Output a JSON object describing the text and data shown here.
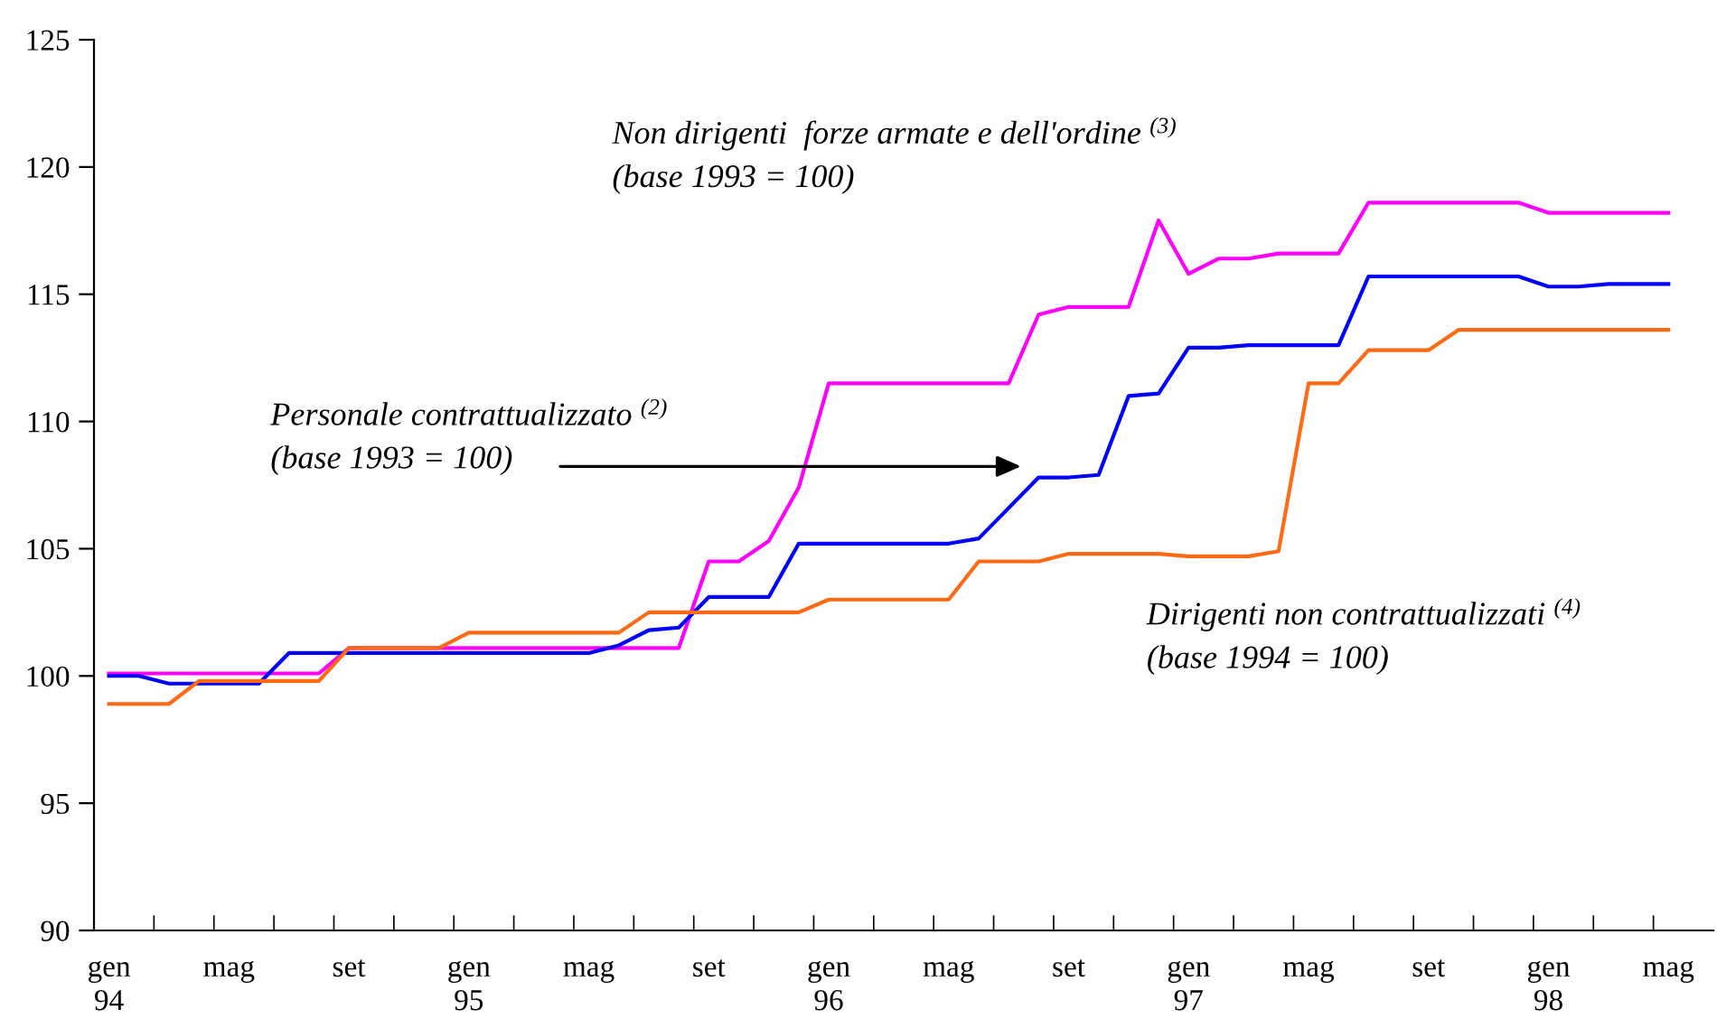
{
  "chart_data": {
    "type": "line",
    "categories": [
      "gen\n94",
      null,
      null,
      null,
      "mag",
      null,
      null,
      null,
      "set",
      null,
      null,
      null,
      "gen\n95",
      null,
      null,
      null,
      "mag",
      null,
      null,
      null,
      "set",
      null,
      null,
      null,
      "gen\n96",
      null,
      null,
      null,
      "mag",
      null,
      null,
      null,
      "set",
      null,
      null,
      null,
      "gen\n97",
      null,
      null,
      null,
      "mag",
      null,
      null,
      null,
      "set",
      null,
      null,
      null,
      "gen\n98",
      null,
      null,
      null,
      "mag"
    ],
    "series": [
      {
        "name": "Non dirigenti  forze armate e dell'ordine $^{(3)}$\n(base 1993 = 100)",
        "color": "#ff00ff",
        "values": [
          100.1,
          100.1,
          100.1,
          100.1,
          100.1,
          100.1,
          100.1,
          100.1,
          101.1,
          101.1,
          101.1,
          101.1,
          101.1,
          101.1,
          101.1,
          101.1,
          101.1,
          101.1,
          101.1,
          101.1,
          104.5,
          104.5,
          105.3,
          107.4,
          111.5,
          111.5,
          111.5,
          111.5,
          111.5,
          111.5,
          111.5,
          114.2,
          114.5,
          114.5,
          114.5,
          117.9,
          115.8,
          116.4,
          116.4,
          116.6,
          116.6,
          116.6,
          118.6,
          118.6,
          118.6,
          118.6,
          118.6,
          118.6,
          118.2,
          118.2,
          118.2,
          118.2,
          118.2
        ]
      },
      {
        "name": "Personale contrattualizzato $^{(2)}$\n(base 1993 = 100)",
        "color": "#0000ff",
        "values": [
          100.0,
          100.0,
          99.7,
          99.7,
          99.7,
          99.7,
          100.9,
          100.9,
          100.9,
          100.9,
          100.9,
          100.9,
          100.9,
          100.9,
          100.9,
          100.9,
          100.9,
          101.2,
          101.8,
          101.9,
          103.1,
          103.1,
          103.1,
          105.2,
          105.2,
          105.2,
          105.2,
          105.2,
          105.2,
          105.4,
          106.6,
          107.8,
          107.8,
          107.9,
          111.0,
          111.1,
          112.9,
          112.9,
          113.0,
          113.0,
          113.0,
          113.0,
          115.7,
          115.7,
          115.7,
          115.7,
          115.7,
          115.7,
          115.3,
          115.3,
          115.4,
          115.4,
          115.4
        ]
      },
      {
        "name": "Dirigenti non contrattualizzati $^{(4)}$\n(base 1994 = 100)",
        "color": "#ff6a13",
        "values": [
          98.9,
          98.9,
          98.9,
          99.8,
          99.8,
          99.8,
          99.8,
          99.8,
          101.1,
          101.1,
          101.1,
          101.1,
          101.7,
          101.7,
          101.7,
          101.7,
          101.7,
          101.7,
          102.5,
          102.5,
          102.5,
          102.5,
          102.5,
          102.5,
          103.0,
          103.0,
          103.0,
          103.0,
          103.0,
          104.5,
          104.5,
          104.5,
          104.8,
          104.8,
          104.8,
          104.8,
          104.7,
          104.7,
          104.7,
          104.9,
          111.5,
          111.5,
          112.8,
          112.8,
          112.8,
          113.6,
          113.6,
          113.6,
          113.6,
          113.6,
          113.6,
          113.6,
          113.6
        ]
      }
    ],
    "ylim": [
      90,
      125
    ],
    "yticks": [
      90,
      95,
      100,
      105,
      110,
      115,
      120,
      125
    ],
    "grid": false,
    "legend": false,
    "marker": "none",
    "line_style": "solid"
  }
}
